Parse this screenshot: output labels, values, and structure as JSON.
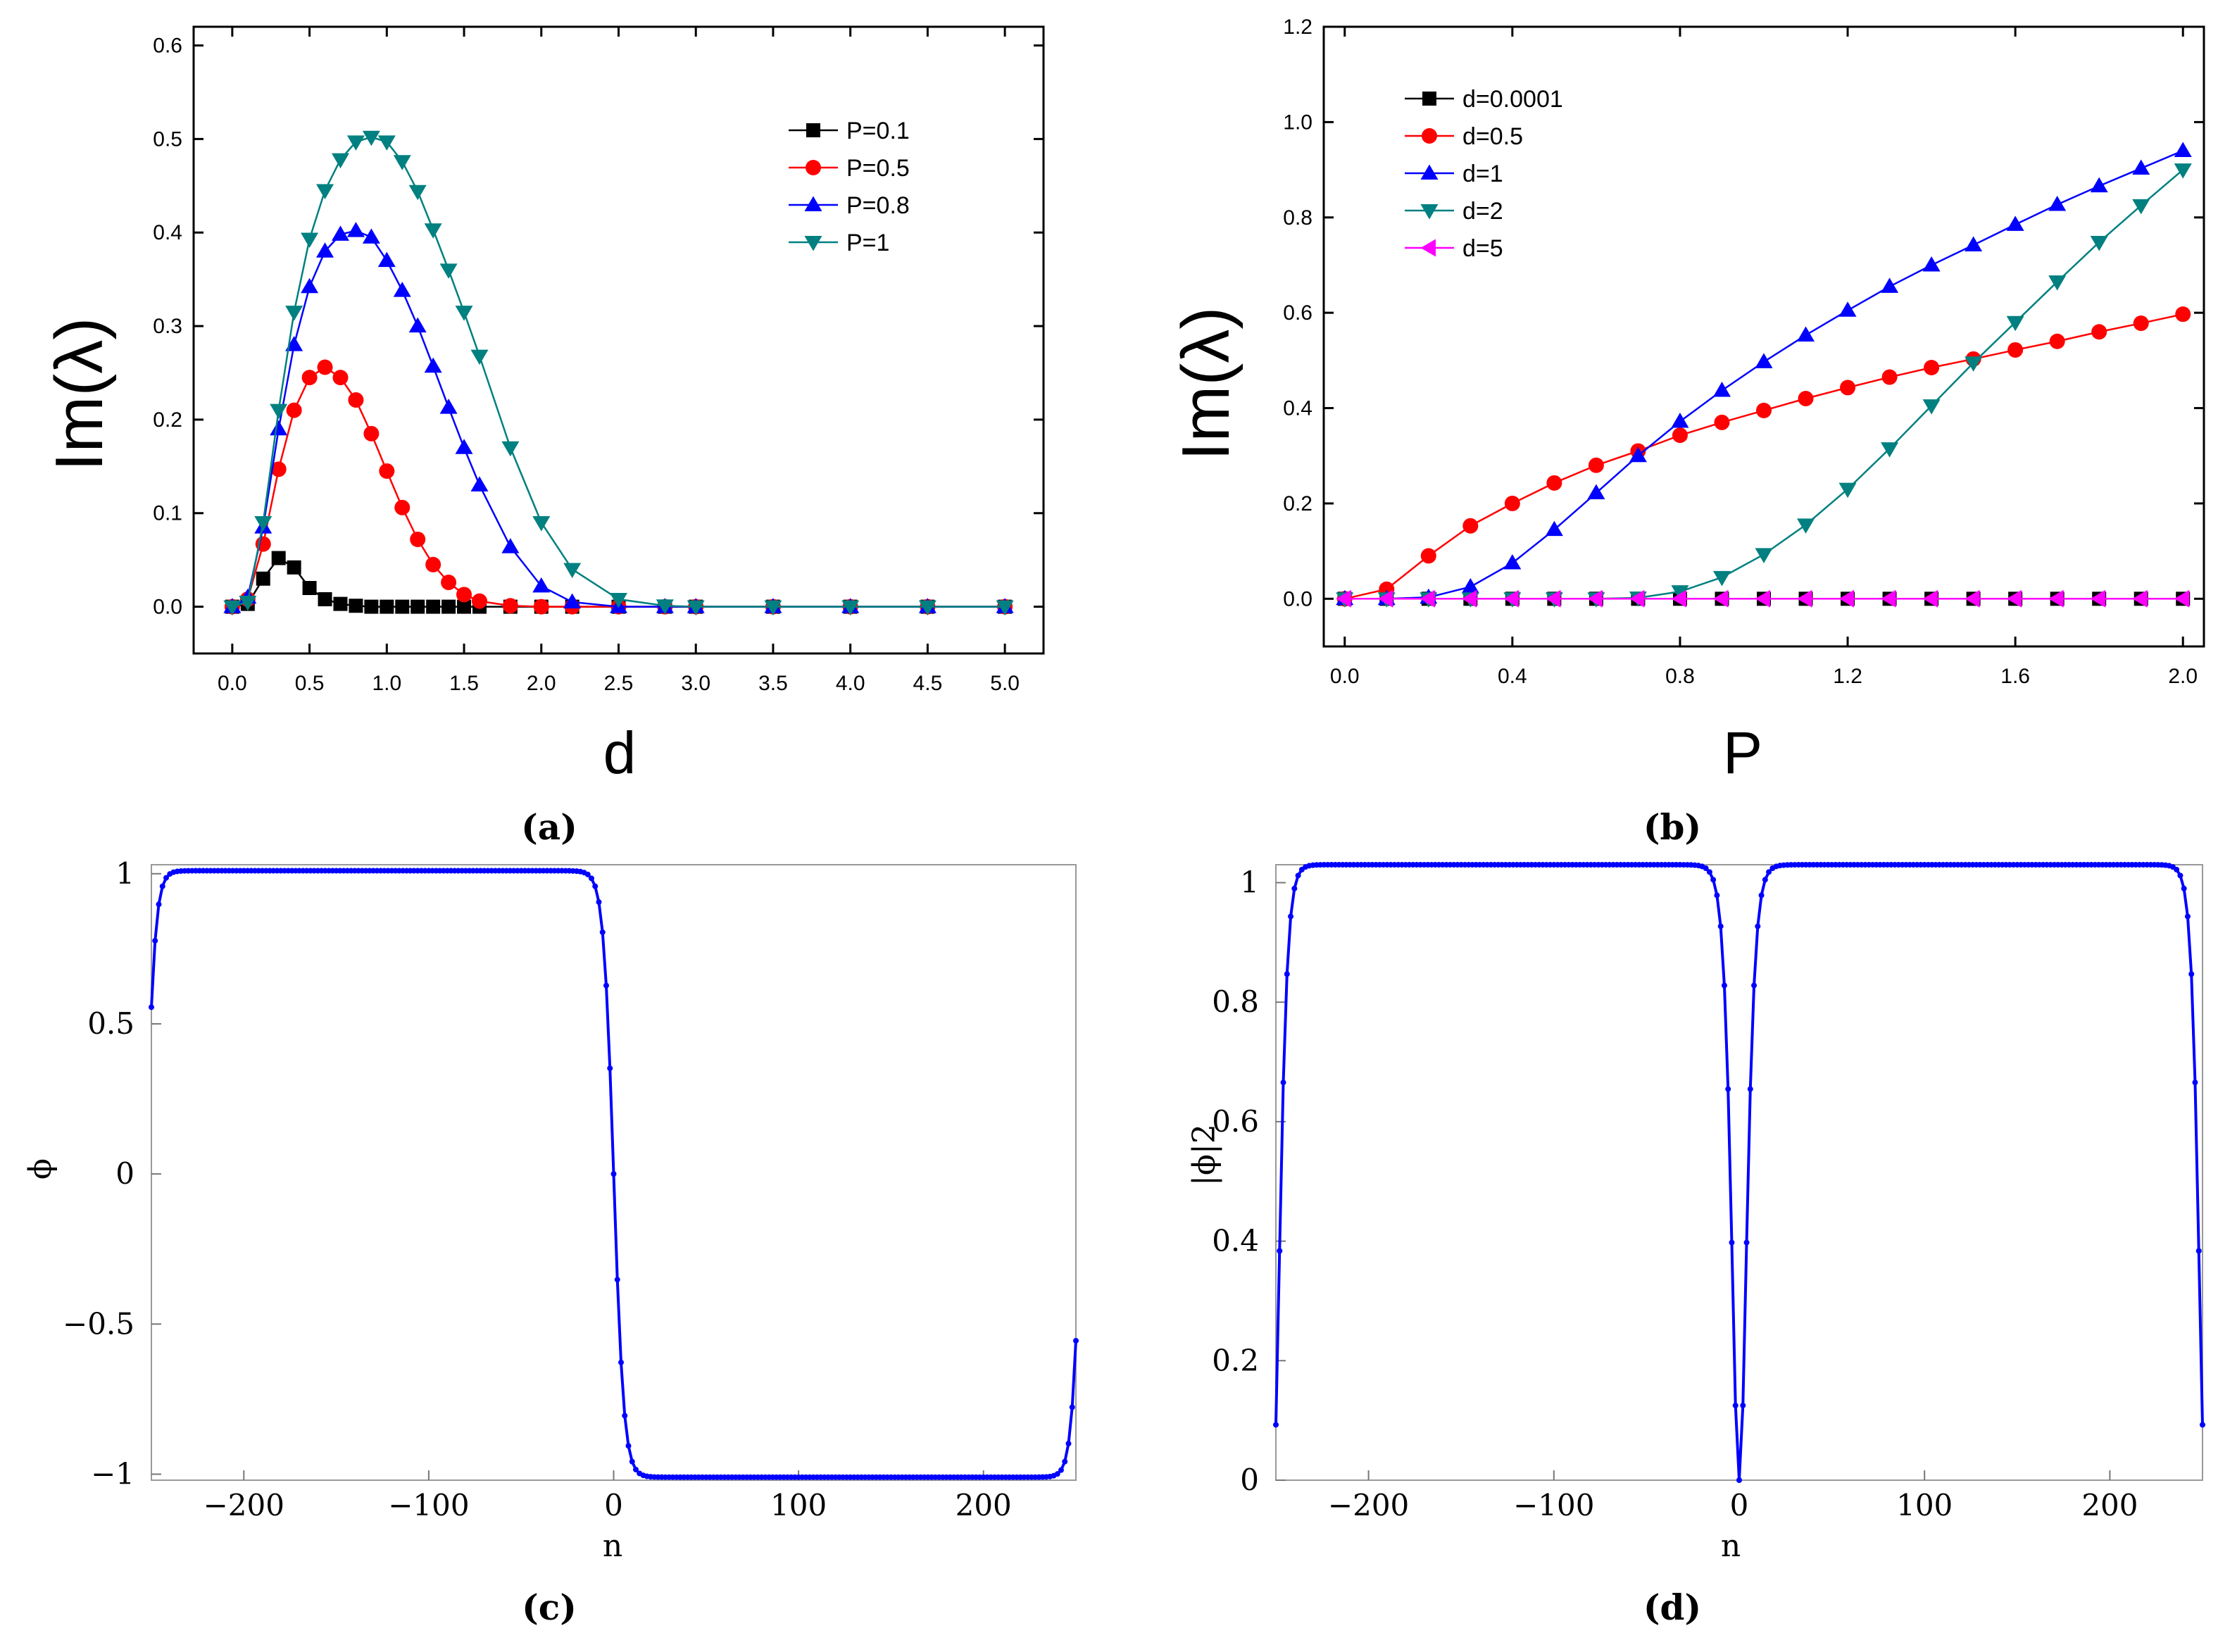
{
  "chart_data": [
    {
      "id": "a",
      "type": "line",
      "xlabel": "d",
      "ylabel": "Im(λ)",
      "caption": "(a)",
      "xlim": [
        -0.25,
        5.25
      ],
      "ylim": [
        -0.05,
        0.62
      ],
      "xticks": [
        0.0,
        0.5,
        1.0,
        1.5,
        2.0,
        2.5,
        3.0,
        3.5,
        4.0,
        4.5,
        5.0
      ],
      "xtick_labels": [
        "0.0",
        "0.5",
        "1.0",
        "1.5",
        "2.0",
        "2.5",
        "3.0",
        "3.5",
        "4.0",
        "4.5",
        "5.0"
      ],
      "yticks": [
        0.0,
        0.1,
        0.2,
        0.3,
        0.4,
        0.5,
        0.6
      ],
      "ytick_labels": [
        "0.0",
        "0.1",
        "0.2",
        "0.3",
        "0.4",
        "0.5",
        "0.6"
      ],
      "legend_position": "top-right",
      "series": [
        {
          "name": "P=0.1",
          "color": "#000000",
          "marker": "square",
          "x": [
            0.0,
            0.1,
            0.2,
            0.3,
            0.4,
            0.5,
            0.6,
            0.7,
            0.8,
            0.9,
            1.0,
            1.1,
            1.2,
            1.3,
            1.4,
            1.5,
            1.6,
            1.8,
            2.0,
            2.2,
            2.5,
            2.8,
            3.0,
            3.5,
            4.0,
            4.5,
            5.0
          ],
          "y": [
            0.0,
            0.003,
            0.03,
            0.052,
            0.042,
            0.02,
            0.008,
            0.003,
            0.001,
            0.0,
            0.0,
            0.0,
            0.0,
            0.0,
            0.0,
            0.0,
            0.0,
            0.0,
            0.0,
            0.0,
            0.0,
            0.0,
            0.0,
            0.0,
            0.0,
            0.0,
            0.0
          ]
        },
        {
          "name": "P=0.5",
          "color": "#ff0000",
          "marker": "circle",
          "x": [
            0.0,
            0.1,
            0.2,
            0.3,
            0.4,
            0.5,
            0.6,
            0.7,
            0.8,
            0.9,
            1.0,
            1.1,
            1.2,
            1.3,
            1.4,
            1.5,
            1.6,
            1.8,
            2.0,
            2.2,
            2.5,
            2.8,
            3.0,
            3.5,
            4.0,
            4.5,
            5.0
          ],
          "y": [
            0.0,
            0.008,
            0.067,
            0.147,
            0.21,
            0.245,
            0.256,
            0.245,
            0.221,
            0.185,
            0.145,
            0.106,
            0.072,
            0.045,
            0.026,
            0.013,
            0.006,
            0.001,
            0.0,
            0.0,
            0.0,
            0.0,
            0.0,
            0.0,
            0.0,
            0.0,
            0.0
          ]
        },
        {
          "name": "P=0.8",
          "color": "#0000ff",
          "marker": "triangle-up",
          "x": [
            0.0,
            0.1,
            0.2,
            0.3,
            0.4,
            0.5,
            0.6,
            0.7,
            0.8,
            0.9,
            1.0,
            1.1,
            1.2,
            1.3,
            1.4,
            1.5,
            1.6,
            1.8,
            2.0,
            2.2,
            2.5,
            2.8,
            3.0,
            3.5,
            4.0,
            4.5,
            5.0
          ],
          "y": [
            0.0,
            0.01,
            0.085,
            0.19,
            0.28,
            0.342,
            0.38,
            0.398,
            0.402,
            0.395,
            0.37,
            0.338,
            0.3,
            0.257,
            0.213,
            0.17,
            0.13,
            0.064,
            0.022,
            0.005,
            0.0,
            0.0,
            0.0,
            0.0,
            0.0,
            0.0,
            0.0
          ]
        },
        {
          "name": "P=1",
          "color": "#008080",
          "marker": "triangle-down",
          "x": [
            0.0,
            0.1,
            0.2,
            0.3,
            0.4,
            0.5,
            0.6,
            0.7,
            0.8,
            0.9,
            1.0,
            1.1,
            1.2,
            1.3,
            1.4,
            1.5,
            1.6,
            1.8,
            2.0,
            2.2,
            2.5,
            2.8,
            3.0,
            3.5,
            4.0,
            4.5,
            5.0
          ],
          "y": [
            0.0,
            0.005,
            0.09,
            0.21,
            0.315,
            0.393,
            0.445,
            0.478,
            0.497,
            0.502,
            0.497,
            0.476,
            0.444,
            0.403,
            0.36,
            0.315,
            0.268,
            0.17,
            0.09,
            0.04,
            0.008,
            0.001,
            0.0,
            0.0,
            0.0,
            0.0,
            0.0
          ]
        }
      ]
    },
    {
      "id": "b",
      "type": "line",
      "xlabel": "P",
      "ylabel": "Im(λ)",
      "caption": "(b)",
      "xlim": [
        -0.05,
        2.05
      ],
      "ylim": [
        -0.1,
        1.2
      ],
      "xticks": [
        0.0,
        0.4,
        0.8,
        1.2,
        1.6,
        2.0
      ],
      "xtick_labels": [
        "0.0",
        "0.4",
        "0.8",
        "1.2",
        "1.6",
        "2.0"
      ],
      "yticks": [
        0.0,
        0.2,
        0.4,
        0.6,
        0.8,
        1.0,
        1.2
      ],
      "ytick_labels": [
        "0.0",
        "0.2",
        "0.4",
        "0.6",
        "0.8",
        "1.0",
        "1.2"
      ],
      "legend_position": "top-left",
      "series": [
        {
          "name": "d=0.0001",
          "color": "#000000",
          "marker": "square",
          "x": [
            0.0,
            0.1,
            0.2,
            0.3,
            0.4,
            0.5,
            0.6,
            0.7,
            0.8,
            0.9,
            1.0,
            1.1,
            1.2,
            1.3,
            1.4,
            1.5,
            1.6,
            1.7,
            1.8,
            1.9,
            2.0
          ],
          "y": [
            0,
            0,
            0,
            0,
            0,
            0,
            0,
            0,
            0,
            0,
            0,
            0,
            0,
            0,
            0,
            0,
            0,
            0,
            0,
            0,
            0
          ]
        },
        {
          "name": "d=0.5",
          "color": "#ff0000",
          "marker": "circle",
          "x": [
            0.0,
            0.1,
            0.2,
            0.3,
            0.4,
            0.5,
            0.6,
            0.7,
            0.8,
            0.9,
            1.0,
            1.1,
            1.2,
            1.3,
            1.4,
            1.5,
            1.6,
            1.7,
            1.8,
            1.9,
            2.0
          ],
          "y": [
            0.0,
            0.02,
            0.09,
            0.153,
            0.2,
            0.243,
            0.28,
            0.31,
            0.343,
            0.37,
            0.395,
            0.42,
            0.443,
            0.465,
            0.485,
            0.503,
            0.522,
            0.54,
            0.56,
            0.578,
            0.597
          ]
        },
        {
          "name": "d=1",
          "color": "#0000ff",
          "marker": "triangle-up",
          "x": [
            0.0,
            0.1,
            0.2,
            0.3,
            0.4,
            0.5,
            0.6,
            0.7,
            0.8,
            0.9,
            1.0,
            1.1,
            1.2,
            1.3,
            1.4,
            1.5,
            1.6,
            1.7,
            1.8,
            1.9,
            2.0
          ],
          "y": [
            0.0,
            0.0,
            0.003,
            0.025,
            0.075,
            0.145,
            0.222,
            0.3,
            0.372,
            0.437,
            0.497,
            0.553,
            0.605,
            0.655,
            0.7,
            0.742,
            0.785,
            0.827,
            0.866,
            0.903,
            0.94
          ]
        },
        {
          "name": "d=2",
          "color": "#008080",
          "marker": "triangle-down",
          "x": [
            0.0,
            0.1,
            0.2,
            0.3,
            0.4,
            0.5,
            0.6,
            0.7,
            0.8,
            0.9,
            1.0,
            1.1,
            1.2,
            1.3,
            1.4,
            1.5,
            1.6,
            1.7,
            1.8,
            1.9,
            2.0
          ],
          "y": [
            0.0,
            0.0,
            0.0,
            0.0,
            0.0,
            0.0,
            0.0,
            0.002,
            0.015,
            0.045,
            0.093,
            0.155,
            0.23,
            0.315,
            0.405,
            0.495,
            0.58,
            0.665,
            0.748,
            0.825,
            0.9
          ]
        },
        {
          "name": "d=5",
          "color": "#ff00ff",
          "marker": "triangle-left",
          "x": [
            0.0,
            0.1,
            0.2,
            0.3,
            0.4,
            0.5,
            0.6,
            0.7,
            0.8,
            0.9,
            1.0,
            1.1,
            1.2,
            1.3,
            1.4,
            1.5,
            1.6,
            1.7,
            1.8,
            1.9,
            2.0
          ],
          "y": [
            0,
            0,
            0,
            0,
            0,
            0,
            0,
            0,
            0,
            0,
            0,
            0,
            0,
            0,
            0,
            0,
            0,
            0,
            0,
            0,
            0
          ]
        }
      ]
    },
    {
      "id": "c",
      "type": "line",
      "xlabel": "n",
      "ylabel": "ϕ",
      "caption": "(c)",
      "xlim": [
        -250,
        250
      ],
      "ylim": [
        -1.02,
        1.03
      ],
      "xticks": [
        -200,
        -100,
        0,
        100,
        200
      ],
      "xtick_labels": [
        "−200",
        "−100",
        "0",
        "100",
        "200"
      ],
      "yticks": [
        -1,
        -0.5,
        0,
        0.5,
        1
      ],
      "ytick_labels": [
        "−1",
        "−0.5",
        "0",
        "0.5",
        "1"
      ],
      "color": "#0000ff",
      "profile": {
        "n_range": [
          -250,
          250
        ],
        "n_step": 2,
        "amplitude": 1.0,
        "edge_value": 0.55,
        "interior_width": 5.5,
        "edge_width": 5.0
      }
    },
    {
      "id": "d",
      "type": "line",
      "xlabel": "n",
      "ylabel": "|ϕ|2",
      "caption": "(d)",
      "xlim": [
        -250,
        250
      ],
      "ylim": [
        0,
        1.03
      ],
      "xticks": [
        -200,
        -100,
        0,
        100,
        200
      ],
      "xtick_labels": [
        "−200",
        "−100",
        "0",
        "100",
        "200"
      ],
      "yticks": [
        0,
        0.2,
        0.4,
        0.6,
        0.8,
        1
      ],
      "ytick_labels": [
        "0",
        "0.2",
        "0.4",
        "0.6",
        "0.8",
        "1"
      ],
      "color": "#0000ff",
      "profile": {
        "n_range": [
          -250,
          250
        ],
        "n_step": 2,
        "amplitude": 1.0,
        "edge_value": 0.3,
        "interior_width": 5.5,
        "edge_width": 5.0
      }
    }
  ]
}
